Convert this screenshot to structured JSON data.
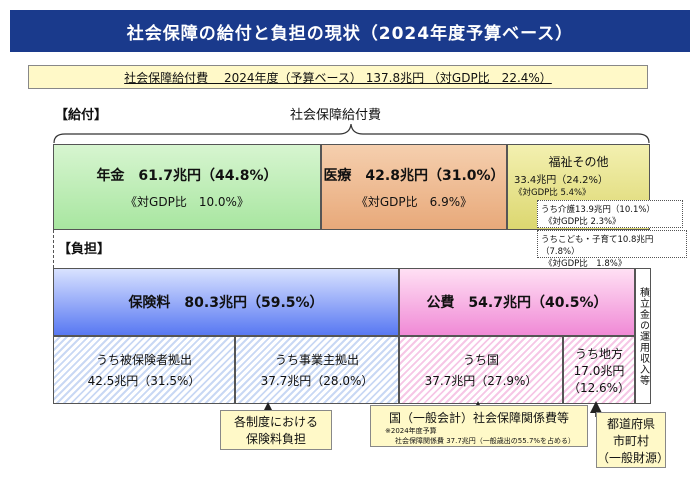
{
  "title": "社会保障の給付と負担の現状（2024年度予算ベース）",
  "summary": "社会保障給付費　 2024年度（予算ベース） 137.8兆円 （対GDP比　22.4%）",
  "benefits": {
    "section_label": "【給付】",
    "header": "社会保障給付費",
    "pension": {
      "title": "年金　61.7兆円（44.8%）",
      "gdp": "《対GDP比　10.0%》"
    },
    "medical": {
      "title": "医療　42.8兆円（31.0%）",
      "gdp": "《対GDP比　6.9%》"
    },
    "welfare": {
      "title": "福祉その他",
      "amount": "33.4兆円（24.2%）",
      "gdp": "《対GDP比 5.4%》",
      "care_line1": "うち介護13.9兆円（10.1%）",
      "care_line2": "《対GDP比 2.3%》",
      "child_line1": "うちこども・子育て10.8兆円（7.8%）",
      "child_line2": "《対GDP比　1.8%》"
    }
  },
  "burden": {
    "section_label": "【負担】",
    "insurance": "保険料　80.3兆円（59.5%）",
    "public": "公費　54.7兆円（40.5%）",
    "reserve": "積立金の運用収入等",
    "insured": {
      "line1": "うち被保険者拠出",
      "line2": "42.5兆円（31.5%）"
    },
    "employer": {
      "line1": "うち事業主拠出",
      "line2": "37.7兆円（28.0%）"
    },
    "national": {
      "line1": "うち国",
      "line2": "37.7兆円（27.9%）"
    },
    "local": {
      "line1": "うち地方",
      "line2": "17.0兆円",
      "line3": "（12.6%）"
    }
  },
  "notes": {
    "insurance_note_line1": "各制度における",
    "insurance_note_line2": "保険料負担",
    "national_note_main": "国（一般会計）社会保障関係費等",
    "national_note_sub1": "※2024年度予算",
    "national_note_sub2": "社会保障関係費 37.7兆円（一般歳出の55.7%を占める）",
    "local_note_line1": "都道府県",
    "local_note_line2": "市町村",
    "local_note_line3": "（一般財源）"
  }
}
